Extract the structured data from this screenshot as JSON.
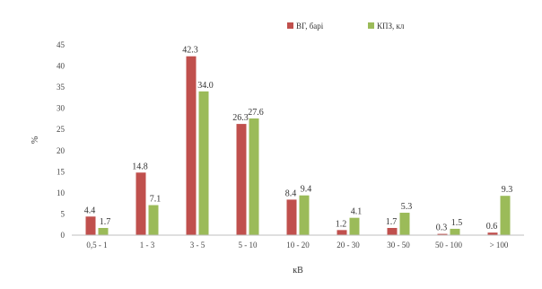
{
  "chart_data": {
    "type": "bar",
    "xlabel": "кВ",
    "ylabel": "%",
    "ylim": [
      0,
      45
    ],
    "yticks": [
      0,
      5,
      10,
      15,
      20,
      25,
      30,
      35,
      40,
      45
    ],
    "grid": false,
    "legend_position": "top-right",
    "categories": [
      "0,5 - 1",
      "1 - 3",
      "3 - 5",
      "5 - 10",
      "10 - 20",
      "20 - 30",
      "30 - 50",
      "50 - 100",
      "> 100"
    ],
    "series": [
      {
        "name": "ВГ, барі",
        "color": "#c0504d",
        "values": [
          4.4,
          14.8,
          42.3,
          26.3,
          8.4,
          1.2,
          1.7,
          0.3,
          0.6
        ],
        "labels": [
          "4.4",
          "14.8",
          "42.3",
          "26.3",
          "8.4",
          "1.2",
          "1.7",
          "0.3",
          "0.6"
        ]
      },
      {
        "name": "КПЗ, кл",
        "color": "#9bbb59",
        "values": [
          1.7,
          7.1,
          34.0,
          27.6,
          9.4,
          4.1,
          5.3,
          1.5,
          9.3
        ],
        "labels": [
          "1.7",
          "7.1",
          "34.0",
          "27.6",
          "9.4",
          "4.1",
          "5.3",
          "1.5",
          "9.3"
        ]
      }
    ]
  }
}
